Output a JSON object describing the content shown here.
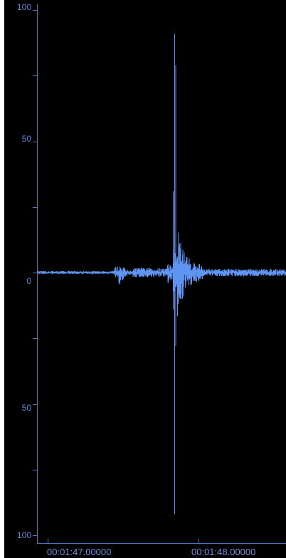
{
  "colors": {
    "background": "#000000",
    "waveform": "#5f95f2",
    "axis": "#4f77c6",
    "label": "#5b86d6"
  },
  "amplitude_axis": {
    "ticks": [
      {
        "value": 100,
        "label": "100"
      },
      {
        "value": 75,
        "label": ""
      },
      {
        "value": 50,
        "label": "50"
      },
      {
        "value": 25,
        "label": ""
      },
      {
        "value": 0,
        "label": "0"
      },
      {
        "value": -25,
        "label": ""
      },
      {
        "value": -50,
        "label": "50"
      },
      {
        "value": -75,
        "label": ""
      },
      {
        "value": -100,
        "label": "100"
      }
    ]
  },
  "time_axis": {
    "labels": [
      "00:01:47.00000",
      "00:01:48.00000"
    ]
  },
  "chart_data": {
    "type": "line",
    "ylim": [
      -100,
      100
    ],
    "x_range_seconds": [
      106.93,
      108.58
    ],
    "events": [
      {
        "time_s": 107.47,
        "peak_pos": 7,
        "peak_neg": -7
      },
      {
        "time_s": 107.84,
        "peak_pos": 91,
        "peak_neg": -92
      }
    ]
  }
}
